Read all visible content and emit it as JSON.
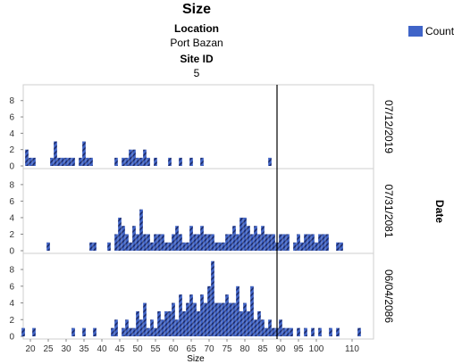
{
  "chart_data": {
    "type": "bar",
    "title": "Size",
    "subtitle": [
      {
        "label": "Location",
        "value": "Port Bazan"
      },
      {
        "label": "Site ID",
        "value": "5"
      }
    ],
    "xlabel": "Size",
    "facet_label": "Date",
    "legend": {
      "entries": [
        "Count"
      ],
      "position": "top-right"
    },
    "color": "#3f64c8",
    "xlim": [
      18,
      116
    ],
    "x_ticks": [
      20,
      25,
      30,
      35,
      40,
      45,
      50,
      55,
      60,
      65,
      70,
      75,
      80,
      85,
      90,
      95,
      100,
      110
    ],
    "ylim": [
      0,
      9.5
    ],
    "y_ticks": [
      0,
      2,
      4,
      6,
      8
    ],
    "reference_line_x": 89,
    "panels": [
      {
        "date": "07/12/2019",
        "x": [
          19,
          20,
          21,
          26,
          27,
          28,
          29,
          30,
          31,
          32,
          34,
          35,
          36,
          37,
          44,
          46,
          47,
          48,
          49,
          50,
          51,
          52,
          53,
          55,
          59,
          62,
          65,
          68,
          87
        ],
        "counts": [
          2,
          1,
          1,
          1,
          3,
          1,
          1,
          1,
          1,
          1,
          1,
          3,
          1,
          1,
          1,
          1,
          1,
          2,
          2,
          1,
          1,
          2,
          1,
          1,
          1,
          1,
          1,
          1,
          1
        ]
      },
      {
        "date": "07/31/2081",
        "x": [
          25,
          37,
          38,
          42,
          44,
          45,
          46,
          47,
          48,
          49,
          50,
          51,
          52,
          53,
          54,
          55,
          56,
          57,
          58,
          59,
          60,
          61,
          62,
          63,
          64,
          65,
          66,
          67,
          68,
          69,
          70,
          71,
          72,
          73,
          74,
          75,
          76,
          77,
          78,
          79,
          80,
          81,
          82,
          83,
          84,
          85,
          86,
          87,
          88,
          89,
          90,
          91,
          92,
          94,
          95,
          96,
          97,
          98,
          99,
          100,
          101,
          102,
          103,
          106,
          107
        ],
        "counts": [
          1,
          1,
          1,
          1,
          2,
          4,
          3,
          2,
          1,
          3,
          2,
          5,
          2,
          2,
          1,
          2,
          2,
          2,
          1,
          1,
          2,
          3,
          2,
          1,
          1,
          3,
          2,
          2,
          3,
          2,
          2,
          2,
          1,
          1,
          1,
          2,
          2,
          3,
          2,
          4,
          4,
          3,
          2,
          3,
          2,
          3,
          2,
          2,
          2,
          1,
          2,
          2,
          2,
          1,
          2,
          1,
          2,
          2,
          2,
          1,
          2,
          2,
          2,
          1,
          1
        ]
      },
      {
        "date": "06/04/2086",
        "x": [
          18,
          21,
          32,
          35,
          38,
          43,
          44,
          46,
          47,
          48,
          49,
          50,
          51,
          52,
          53,
          54,
          55,
          56,
          57,
          58,
          59,
          60,
          61,
          62,
          63,
          64,
          65,
          66,
          67,
          68,
          69,
          70,
          71,
          72,
          73,
          74,
          75,
          76,
          77,
          78,
          79,
          80,
          81,
          82,
          83,
          84,
          85,
          86,
          87,
          88,
          89,
          90,
          91,
          92,
          93,
          95,
          97,
          99,
          101,
          104,
          106,
          112
        ],
        "counts": [
          1,
          1,
          1,
          1,
          1,
          1,
          2,
          1,
          2,
          1,
          1,
          3,
          2,
          4,
          1,
          2,
          1,
          3,
          2,
          3,
          3,
          4,
          2,
          5,
          3,
          4,
          5,
          4,
          3,
          5,
          4,
          6,
          9,
          4,
          4,
          4,
          5,
          4,
          4,
          6,
          3,
          4,
          3,
          6,
          2,
          3,
          2,
          1,
          2,
          1,
          1,
          2,
          1,
          1,
          1,
          1,
          1,
          1,
          1,
          1,
          1,
          1
        ]
      }
    ]
  }
}
